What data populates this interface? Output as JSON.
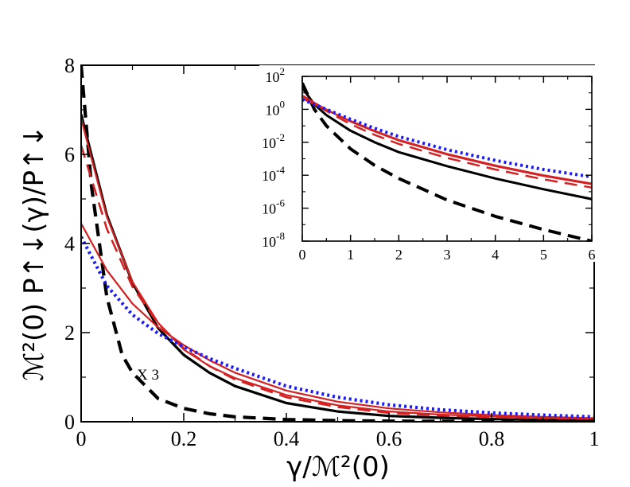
{
  "chart_data": [
    {
      "type": "line",
      "panel": "main",
      "xlabel": "γ/ℳ²(0)",
      "ylabel": "ℳ²(0) P↑↓(γ)/P↑↓",
      "xlim": [
        0,
        1
      ],
      "ylim": [
        0,
        8
      ],
      "xticks": [
        "0",
        "0.2",
        "0.4",
        "0.6",
        "0.8",
        "1"
      ],
      "yticks": [
        "0",
        "2",
        "4",
        "6",
        "8"
      ],
      "annotation": "X 3",
      "series": [
        {
          "name": "black-solid",
          "color": "#000000",
          "style": "solid",
          "points": [
            [
              0,
              6.9
            ],
            [
              0.05,
              4.64
            ],
            [
              0.1,
              3.12
            ],
            [
              0.15,
              2.1
            ],
            [
              0.2,
              1.5
            ],
            [
              0.25,
              1.1
            ],
            [
              0.3,
              0.8
            ],
            [
              0.4,
              0.42
            ],
            [
              0.5,
              0.23
            ],
            [
              0.6,
              0.13
            ],
            [
              0.7,
              0.09
            ],
            [
              0.8,
              0.06
            ],
            [
              0.9,
              0.04
            ],
            [
              1.0,
              0.03
            ]
          ]
        },
        {
          "name": "black-dashed",
          "color": "#000000",
          "style": "dashed",
          "points": [
            [
              0,
              8.0
            ],
            [
              0.02,
              5.3
            ],
            [
              0.05,
              2.8
            ],
            [
              0.08,
              1.5
            ],
            [
              0.1,
              1.1
            ],
            [
              0.15,
              0.52
            ],
            [
              0.2,
              0.3
            ],
            [
              0.25,
              0.18
            ],
            [
              0.3,
              0.11
            ],
            [
              0.4,
              0.05
            ],
            [
              0.5,
              0.025
            ],
            [
              0.6,
              0.015
            ],
            [
              0.8,
              0.008
            ],
            [
              1.0,
              0.005
            ]
          ]
        },
        {
          "name": "red-dashed",
          "color": "#d42020",
          "style": "dashed",
          "points": [
            [
              0,
              6.2
            ],
            [
              0.05,
              4.33
            ],
            [
              0.1,
              3.03
            ],
            [
              0.15,
              2.2
            ],
            [
              0.2,
              1.65
            ],
            [
              0.25,
              1.25
            ],
            [
              0.3,
              0.95
            ],
            [
              0.4,
              0.55
            ],
            [
              0.5,
              0.33
            ],
            [
              0.6,
              0.2
            ],
            [
              0.7,
              0.14
            ],
            [
              0.8,
              0.1
            ],
            [
              0.9,
              0.08
            ],
            [
              1.0,
              0.06
            ]
          ]
        },
        {
          "name": "red-solid-upper",
          "color": "#d42020",
          "style": "solid",
          "points": [
            [
              0,
              6.8
            ],
            [
              0.05,
              4.6
            ],
            [
              0.1,
              3.14
            ],
            [
              0.15,
              2.22
            ],
            [
              0.2,
              1.62
            ],
            [
              0.25,
              1.25
            ],
            [
              0.3,
              0.98
            ],
            [
              0.4,
              0.6
            ],
            [
              0.5,
              0.37
            ],
            [
              0.6,
              0.23
            ],
            [
              0.7,
              0.16
            ],
            [
              0.8,
              0.12
            ],
            [
              0.9,
              0.09
            ],
            [
              1.0,
              0.07
            ]
          ]
        },
        {
          "name": "red-solid-lower",
          "color": "#d42020",
          "style": "solid",
          "points": [
            [
              0,
              4.45
            ],
            [
              0.05,
              3.4
            ],
            [
              0.1,
              2.65
            ],
            [
              0.15,
              2.12
            ],
            [
              0.2,
              1.72
            ],
            [
              0.25,
              1.38
            ],
            [
              0.3,
              1.1
            ],
            [
              0.4,
              0.7
            ],
            [
              0.5,
              0.45
            ],
            [
              0.6,
              0.3
            ],
            [
              0.7,
              0.21
            ],
            [
              0.8,
              0.15
            ],
            [
              0.9,
              0.11
            ],
            [
              1.0,
              0.08
            ]
          ]
        },
        {
          "name": "blue-dotted",
          "color": "#1a1aff",
          "style": "dotted",
          "points": [
            [
              0,
              4.15
            ],
            [
              0.05,
              3.05
            ],
            [
              0.1,
              2.4
            ],
            [
              0.15,
              1.98
            ],
            [
              0.2,
              1.68
            ],
            [
              0.25,
              1.42
            ],
            [
              0.3,
              1.2
            ],
            [
              0.4,
              0.8
            ],
            [
              0.5,
              0.55
            ],
            [
              0.6,
              0.38
            ],
            [
              0.7,
              0.27
            ],
            [
              0.8,
              0.2
            ],
            [
              0.9,
              0.15
            ],
            [
              1.0,
              0.11
            ]
          ]
        }
      ]
    },
    {
      "type": "line",
      "panel": "inset",
      "xlim": [
        0,
        6
      ],
      "ylim": [
        -8,
        2
      ],
      "yscale": "log",
      "xticks": [
        "0",
        "1",
        "2",
        "3",
        "4",
        "5",
        "6"
      ],
      "yticks": [
        {
          "base": "10",
          "exp": "-8",
          "value": -8
        },
        {
          "base": "10",
          "exp": "-6",
          "value": -6
        },
        {
          "base": "10",
          "exp": "-4",
          "value": -4
        },
        {
          "base": "10",
          "exp": "-2",
          "value": -2
        },
        {
          "base": "10",
          "exp": "0",
          "value": 0
        },
        {
          "base": "10",
          "exp": "2",
          "value": 2
        }
      ],
      "series": [
        {
          "name": "black-solid",
          "color": "#000000",
          "style": "solid",
          "points": [
            [
              0,
              1.3
            ],
            [
              0.25,
              0.3
            ],
            [
              0.5,
              -0.35
            ],
            [
              1,
              -1.3
            ],
            [
              1.5,
              -2.0
            ],
            [
              2,
              -2.6
            ],
            [
              3,
              -3.45
            ],
            [
              4,
              -4.2
            ],
            [
              5,
              -4.85
            ],
            [
              6,
              -5.45
            ]
          ]
        },
        {
          "name": "black-dashed",
          "color": "#000000",
          "style": "dashed",
          "points": [
            [
              0,
              1.6
            ],
            [
              0.25,
              0.0
            ],
            [
              0.5,
              -1.0
            ],
            [
              1,
              -2.4
            ],
            [
              1.5,
              -3.4
            ],
            [
              2,
              -4.2
            ],
            [
              3,
              -5.5
            ],
            [
              4,
              -6.5
            ],
            [
              5,
              -7.3
            ],
            [
              6,
              -8.0
            ]
          ]
        },
        {
          "name": "red-dashed",
          "color": "#d42020",
          "style": "dashed",
          "points": [
            [
              0,
              0.8
            ],
            [
              0.25,
              0.35
            ],
            [
              0.5,
              -0.1
            ],
            [
              1,
              -0.9
            ],
            [
              1.5,
              -1.55
            ],
            [
              2,
              -2.1
            ],
            [
              3,
              -2.95
            ],
            [
              4,
              -3.65
            ],
            [
              5,
              -4.25
            ],
            [
              6,
              -4.75
            ]
          ]
        },
        {
          "name": "red-solid-upper",
          "color": "#d42020",
          "style": "solid",
          "points": [
            [
              0,
              0.85
            ],
            [
              0.25,
              0.4
            ],
            [
              0.5,
              0.0
            ],
            [
              1,
              -0.75
            ],
            [
              1.5,
              -1.35
            ],
            [
              2,
              -1.9
            ],
            [
              3,
              -2.75
            ],
            [
              4,
              -3.45
            ],
            [
              5,
              -4.05
            ],
            [
              6,
              -4.55
            ]
          ]
        },
        {
          "name": "red-solid-lower",
          "color": "#d42020",
          "style": "solid",
          "points": [
            [
              0,
              0.65
            ],
            [
              0.25,
              0.3
            ],
            [
              0.5,
              -0.05
            ],
            [
              1,
              -0.7
            ],
            [
              1.5,
              -1.3
            ],
            [
              2,
              -1.85
            ],
            [
              3,
              -2.7
            ],
            [
              4,
              -3.4
            ],
            [
              5,
              -4.0
            ],
            [
              6,
              -4.5
            ]
          ]
        },
        {
          "name": "blue-dotted",
          "color": "#1a1aff",
          "style": "dotted",
          "points": [
            [
              0,
              0.6
            ],
            [
              0.25,
              0.3
            ],
            [
              0.5,
              0.0
            ],
            [
              1,
              -0.6
            ],
            [
              1.5,
              -1.15
            ],
            [
              2,
              -1.65
            ],
            [
              3,
              -2.45
            ],
            [
              4,
              -3.1
            ],
            [
              5,
              -3.65
            ],
            [
              6,
              -4.1
            ]
          ]
        }
      ]
    }
  ]
}
